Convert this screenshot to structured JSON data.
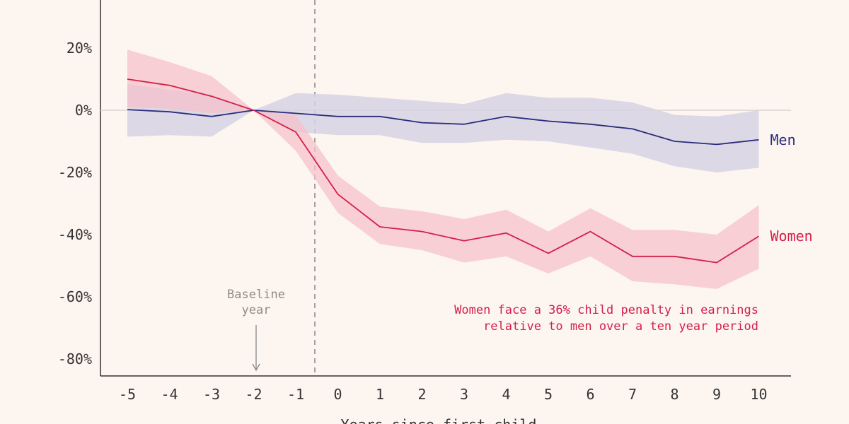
{
  "chart_data": {
    "type": "line",
    "xlabel": "Years since first child",
    "ylabel": "",
    "x": [
      -5,
      -4,
      -3,
      -2,
      -1,
      0,
      1,
      2,
      3,
      4,
      5,
      6,
      7,
      8,
      9,
      10
    ],
    "yticks": [
      20,
      0,
      -20,
      -40,
      -60,
      -80
    ],
    "ytick_labels": [
      "20%",
      "0%",
      "-20%",
      "-40%",
      "-60%",
      "-80%"
    ],
    "ylim": [
      -85,
      35
    ],
    "grid": false,
    "series": [
      {
        "name": "Men",
        "color": "#2b2d7c",
        "band_color": "#d6d2e4",
        "values": [
          0.2,
          -0.5,
          -2,
          0,
          -1,
          -2,
          -2,
          -4,
          -4.5,
          -2,
          -3.5,
          -4.5,
          -6,
          -10,
          -11,
          -9.5
        ],
        "lower": [
          -8.5,
          -8,
          -8.5,
          0,
          -7,
          -8,
          -8,
          -10.5,
          -10.5,
          -9.5,
          -10,
          -12,
          -14,
          -18,
          -20,
          -18.5
        ],
        "upper": [
          8.5,
          6.5,
          5,
          0,
          5.5,
          5,
          4,
          3,
          2,
          5.5,
          4,
          4,
          2.5,
          -1.5,
          -2,
          0
        ]
      },
      {
        "name": "Women",
        "color": "#d41f4a",
        "band_color": "#f5c1cb",
        "values": [
          10,
          8,
          4.5,
          0,
          -7,
          -27,
          -37.5,
          -39,
          -42,
          -39.5,
          -46,
          -39,
          -47,
          -47,
          -49,
          -40.5
        ],
        "lower": [
          1,
          0.5,
          -1,
          0,
          -13,
          -33,
          -43,
          -45,
          -49,
          -47,
          -52.5,
          -47,
          -55,
          -56,
          -57.5,
          -51
        ],
        "upper": [
          19.5,
          15.5,
          11,
          0,
          -1.5,
          -21,
          -31,
          -32.5,
          -35,
          -32,
          -39,
          -31.5,
          -38.5,
          -38.5,
          -40,
          -30.5
        ]
      }
    ],
    "annotations": {
      "baseline_line1": "Baseline",
      "baseline_line2": "year",
      "note_line1": "Women face a 36% child penalty in earnings",
      "note_line2": "relative to men over a ten year period"
    }
  }
}
